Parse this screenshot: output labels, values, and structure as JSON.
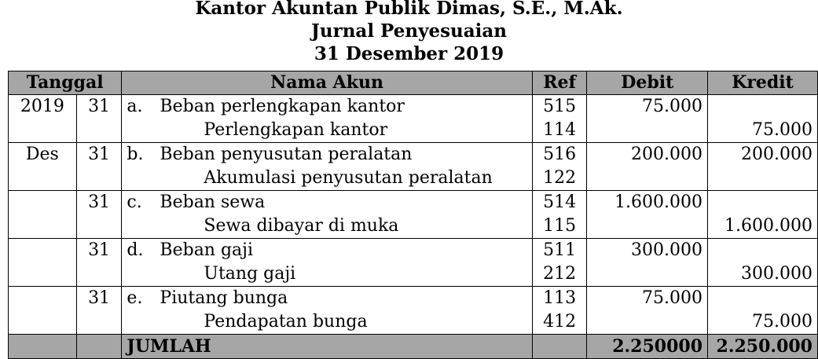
{
  "header": {
    "line1": "Kantor Akuntan Publik Dimas, S.E., M.Ak.",
    "line2": "Jurnal Penyesuaian",
    "line3": "31 Desember 2019"
  },
  "columns": {
    "tanggal": "Tanggal",
    "nama_akun": "Nama Akun",
    "ref": "Ref",
    "debit": "Debit",
    "kredit": "Kredit"
  },
  "entries": [
    {
      "c1": "2019",
      "c2": "31",
      "letter": "a.",
      "debit_account": "Beban perlengkapan kantor",
      "debit_ref": "515",
      "debit_value": "75.000",
      "debit_row_credit": "",
      "credit_c1": "",
      "credit_account": "Perlengkapan kantor",
      "credit_ref": "114",
      "credit_row_debit": "",
      "credit_value": "75.000"
    },
    {
      "c1": "Des",
      "c2": "31",
      "letter": "b.",
      "debit_account": "Beban penyusutan peralatan",
      "debit_ref": "516",
      "debit_value": "200.000",
      "debit_row_credit": "200.000",
      "credit_c1": "",
      "credit_account": "Akumulasi penyusutan peralatan",
      "credit_ref": "122",
      "credit_row_debit": "",
      "credit_value": ""
    },
    {
      "c1": "",
      "c2": "31",
      "letter": "c.",
      "debit_account": "Beban sewa",
      "debit_ref": "514",
      "debit_value": "1.600.000",
      "debit_row_credit": "",
      "credit_c1": "",
      "credit_account": "Sewa dibayar di muka",
      "credit_ref": "115",
      "credit_row_debit": "",
      "credit_value": "1.600.000"
    },
    {
      "c1": "",
      "c2": "31",
      "letter": "d.",
      "debit_account": "Beban gaji",
      "debit_ref": "511",
      "debit_value": "300.000",
      "debit_row_credit": "",
      "credit_c1": "",
      "credit_account": "Utang gaji",
      "credit_ref": "212",
      "credit_row_debit": "",
      "credit_value": "300.000"
    },
    {
      "c1": "",
      "c2": "31",
      "letter": "e.",
      "debit_account": "Piutang bunga",
      "debit_ref": "113",
      "debit_value": "75.000",
      "debit_row_credit": "",
      "credit_c1": "",
      "credit_account": "Pendapatan bunga",
      "credit_ref": "412",
      "credit_row_debit": "",
      "credit_value": "75.000"
    }
  ],
  "total": {
    "label": "JUMLAH",
    "debit": "2.250000",
    "kredit": "2.250.000"
  }
}
